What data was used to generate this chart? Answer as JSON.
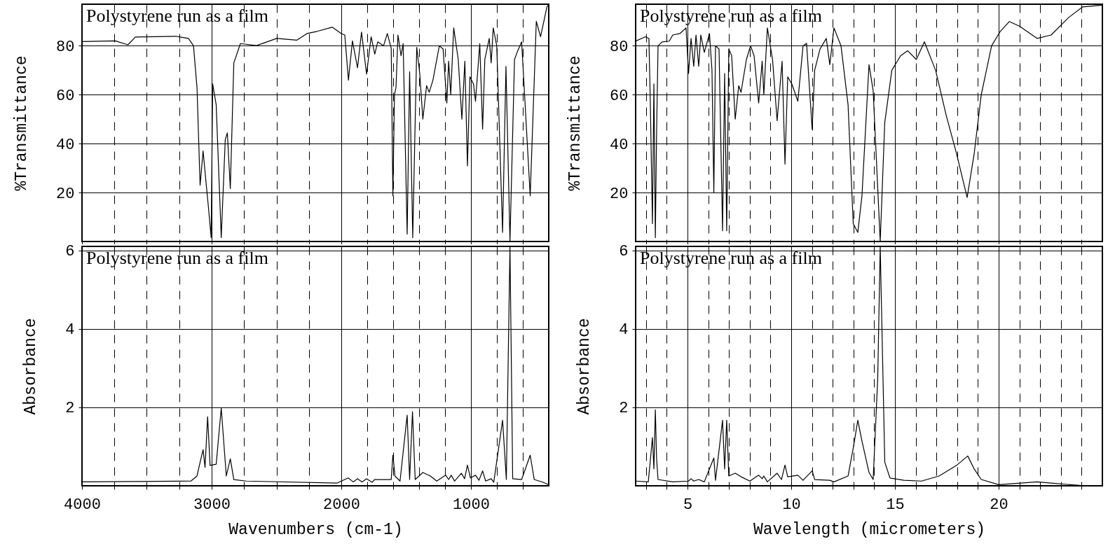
{
  "chart_data": [
    {
      "type": "line",
      "title": "Polystyrene run as a film",
      "ylabel": "%Transmittance",
      "color": "#000000",
      "grid": true,
      "tick_labels": "y",
      "xlim": [
        4000,
        400
      ],
      "ylim": [
        0,
        97
      ],
      "xticks": [
        4000,
        {
          "value": 3750,
          "label": null
        },
        {
          "value": 3500,
          "label": null
        },
        {
          "value": 3250,
          "label": null
        },
        3000,
        {
          "value": 2750,
          "label": null
        },
        {
          "value": 2500,
          "label": null
        },
        {
          "value": 2250,
          "label": null
        },
        2000,
        {
          "value": 1800,
          "label": null
        },
        {
          "value": 1600,
          "label": null
        },
        {
          "value": 1400,
          "label": null
        },
        {
          "value": 1200,
          "label": null
        },
        1000,
        {
          "value": 800,
          "label": null
        },
        {
          "value": 600,
          "label": null
        }
      ],
      "yticks": [
        20,
        40,
        60,
        80
      ],
      "x": [
        4000,
        3743,
        3646,
        3588,
        3276,
        3179,
        3140,
        3113,
        3089,
        3066,
        3043,
        3023,
        3004,
        2992,
        2965,
        2926,
        2895,
        2879,
        2856,
        2829,
        2778,
        2654,
        2498,
        2342,
        2265,
        2187,
        2070,
        2000,
        1973,
        1945,
        1914,
        1875,
        1844,
        1805,
        1770,
        1742,
        1719,
        1674,
        1645,
        1615,
        1602,
        1590,
        1578,
        1563,
        1539,
        1523,
        1492,
        1473,
        1449,
        1418,
        1395,
        1371,
        1342,
        1322,
        1293,
        1244,
        1215,
        1186,
        1172,
        1156,
        1133,
        1098,
        1070,
        1047,
        1027,
        1008,
        980,
        965,
        932,
        910,
        893,
        859,
        844,
        828,
        801,
        756,
        730,
        699,
        664,
        639,
        609,
        543,
        496,
        463,
        414,
        404
      ],
      "values": [
        81.7,
        82,
        80.4,
        83.6,
        83.9,
        83,
        80,
        63,
        23,
        37,
        24,
        13,
        1.6,
        64.4,
        55.9,
        1.6,
        41.6,
        44.4,
        21.6,
        73,
        80.9,
        80.1,
        83,
        82.3,
        85,
        85.9,
        87.6,
        85,
        84.4,
        66,
        82,
        71,
        85.6,
        68.4,
        83.7,
        76.6,
        81.6,
        80,
        85,
        79,
        18.7,
        60,
        63,
        84.4,
        75.9,
        80.9,
        3,
        69.4,
        1.6,
        79.4,
        68.7,
        50,
        63.7,
        61,
        66,
        80,
        78.7,
        56.6,
        73.7,
        60,
        87.3,
        74.4,
        50,
        73.7,
        30.9,
        67.3,
        64.4,
        57.3,
        80.9,
        45.9,
        74.4,
        83,
        73,
        87.3,
        80,
        3.7,
        71.6,
        0.1,
        74.4,
        78,
        81.6,
        18.7,
        90,
        83.7,
        95.9,
        96.6
      ]
    },
    {
      "type": "line",
      "title": "Polystyrene run as a film",
      "ylabel": "%Transmittance",
      "color": "#000000",
      "grid": true,
      "tick_labels": "y",
      "xlim": [
        2.5,
        25
      ],
      "ylim": [
        0,
        97
      ],
      "xticks": [
        {
          "value": 3,
          "label": null
        },
        {
          "value": 4,
          "label": null
        },
        5,
        {
          "value": 6,
          "label": null
        },
        {
          "value": 7,
          "label": null
        },
        {
          "value": 8,
          "label": null
        },
        {
          "value": 9,
          "label": null
        },
        10,
        {
          "value": 11,
          "label": null
        },
        {
          "value": 12,
          "label": null
        },
        {
          "value": 13,
          "label": null
        },
        {
          "value": 14,
          "label": null
        },
        15,
        {
          "value": 16,
          "label": null
        },
        {
          "value": 17,
          "label": null
        },
        {
          "value": 18,
          "label": null
        },
        {
          "value": 19,
          "label": null
        },
        20,
        {
          "value": 21,
          "label": null
        },
        {
          "value": 22,
          "label": null
        },
        {
          "value": 23,
          "label": null
        },
        {
          "value": 24,
          "label": null
        }
      ],
      "yticks": [
        20,
        40,
        60,
        80
      ],
      "x": [
        2.5,
        2.97,
        3.14,
        3.21,
        3.31,
        3.38,
        3.45,
        3.51,
        3.58,
        3.78,
        4.12,
        4.29,
        4.63,
        4.93,
        5.05,
        5.17,
        5.3,
        5.41,
        5.54,
        5.64,
        5.81,
        6.06,
        6.18,
        6.27,
        6.35,
        6.52,
        6.69,
        6.79,
        6.89,
        6.99,
        7.13,
        7.3,
        7.47,
        7.58,
        7.84,
        8.04,
        8.21,
        8.43,
        8.6,
        8.68,
        8.85,
        9.1,
        9.32,
        9.56,
        9.7,
        9.83,
        10.03,
        10.32,
        10.57,
        10.74,
        11.01,
        11.13,
        11.39,
        11.69,
        11.86,
        12.06,
        12.4,
        12.74,
        12.99,
        13.21,
        13.41,
        13.75,
        13.95,
        14.29,
        14.51,
        14.85,
        15.27,
        15.61,
        16.03,
        16.42,
        16.96,
        17.47,
        17.97,
        18.48,
        18.82,
        19.16,
        19.66,
        20.08,
        20.51,
        21.01,
        21.86,
        22.53,
        23.38,
        24.05,
        24.98
      ],
      "values": [
        81.9,
        83.7,
        83,
        55.9,
        7.3,
        64.4,
        1.6,
        44.4,
        80,
        81.6,
        81.9,
        84.4,
        85,
        87.3,
        68.7,
        83,
        71.6,
        84.4,
        71.6,
        84.4,
        77.3,
        85,
        70,
        20,
        80,
        78.7,
        4.4,
        68.7,
        4.4,
        78.7,
        75.9,
        50,
        63.7,
        61,
        74.4,
        80,
        75.9,
        56.6,
        73.7,
        60,
        87.3,
        74.4,
        49.4,
        73.7,
        31.6,
        67.3,
        64.4,
        57.3,
        80,
        81,
        45.9,
        70,
        78.7,
        83,
        72.3,
        87.3,
        80,
        55.9,
        7.3,
        3.7,
        18.7,
        72.3,
        61.6,
        0.1,
        48.7,
        70,
        75.9,
        78,
        74.4,
        81.6,
        70,
        51.6,
        35.9,
        18,
        35.9,
        60,
        80,
        85.9,
        89.9,
        88,
        83,
        84.4,
        91.6,
        95.9,
        96.6
      ]
    },
    {
      "type": "line",
      "title": "Polystyrene run as a film",
      "xlabel": "Wavenumbers (cm-1)",
      "ylabel": "Absorbance",
      "color": "#000000",
      "grid": true,
      "xlim": [
        4000,
        400
      ],
      "ylim": [
        0,
        6.1
      ],
      "xticks": [
        4000,
        {
          "value": 3750,
          "label": null
        },
        {
          "value": 3500,
          "label": null
        },
        {
          "value": 3250,
          "label": null
        },
        3000,
        {
          "value": 2750,
          "label": null
        },
        {
          "value": 2500,
          "label": null
        },
        {
          "value": 2250,
          "label": null
        },
        2000,
        {
          "value": 1800,
          "label": null
        },
        {
          "value": 1600,
          "label": null
        },
        {
          "value": 1400,
          "label": null
        },
        {
          "value": 1200,
          "label": null
        },
        1000,
        {
          "value": 800,
          "label": null
        },
        {
          "value": 600,
          "label": null
        }
      ],
      "yticks": [
        2,
        4,
        6
      ],
      "x": [
        4000,
        3160,
        3113,
        3089,
        3066,
        3051,
        3031,
        3012,
        2965,
        2926,
        2887,
        2856,
        2829,
        2732,
        2031,
        1947,
        1908,
        1875,
        1840,
        1805,
        1762,
        1742,
        1615,
        1602,
        1586,
        1547,
        1492,
        1473,
        1451,
        1430,
        1371,
        1313,
        1264,
        1195,
        1172,
        1152,
        1127,
        1074,
        1049,
        1027,
        1004,
        965,
        938,
        910,
        887,
        844,
        824,
        756,
        727,
        699,
        678,
        609,
        543,
        512,
        443,
        404
      ],
      "values": [
        0.1,
        0.12,
        0.25,
        0.6,
        0.92,
        0.47,
        1.76,
        0.52,
        0.55,
        1.98,
        0.25,
        0.69,
        0.16,
        0.12,
        0.07,
        0.2,
        0.1,
        0.18,
        0.1,
        0.18,
        0.09,
        0.16,
        0.16,
        0.78,
        0.25,
        0.12,
        1.8,
        0.16,
        1.89,
        0.16,
        0.34,
        0.25,
        0.12,
        0.27,
        0.16,
        0.27,
        0.12,
        0.32,
        0.18,
        0.53,
        0.2,
        0.27,
        0.14,
        0.38,
        0.12,
        0.18,
        0.09,
        1.67,
        0.16,
        6.1,
        0.18,
        0.16,
        0.78,
        0.16,
        0.09,
        0.03
      ]
    },
    {
      "type": "line",
      "title": "Polystyrene run as a film",
      "xlabel": "Wavelength (micrometers)",
      "ylabel": "Absorbance",
      "color": "#000000",
      "grid": true,
      "xlim": [
        2.5,
        25
      ],
      "ylim": [
        0,
        6.1
      ],
      "xticks": [
        {
          "value": 3,
          "label": null
        },
        {
          "value": 4,
          "label": null
        },
        5,
        {
          "value": 6,
          "label": null
        },
        {
          "value": 7,
          "label": null
        },
        {
          "value": 8,
          "label": null
        },
        {
          "value": 9,
          "label": null
        },
        10,
        {
          "value": 11,
          "label": null
        },
        {
          "value": 12,
          "label": null
        },
        {
          "value": 13,
          "label": null
        },
        {
          "value": 14,
          "label": null
        },
        15,
        {
          "value": 16,
          "label": null
        },
        {
          "value": 17,
          "label": null
        },
        {
          "value": 18,
          "label": null
        },
        {
          "value": 19,
          "label": null
        },
        20,
        {
          "value": 21,
          "label": null
        },
        {
          "value": 22,
          "label": null
        },
        {
          "value": 23,
          "label": null
        },
        {
          "value": 24,
          "label": null
        }
      ],
      "yticks": [
        2,
        4,
        6
      ],
      "x": [
        2.5,
        3.11,
        3.31,
        3.38,
        3.45,
        3.51,
        3.58,
        4.29,
        5.05,
        5.17,
        5.3,
        5.54,
        5.81,
        6.27,
        6.35,
        6.69,
        6.79,
        6.89,
        6.99,
        7.3,
        7.58,
        8.01,
        8.43,
        8.6,
        8.68,
        8.85,
        9.32,
        9.53,
        9.7,
        9.83,
        10.32,
        10.57,
        11.01,
        11.13,
        11.86,
        12.06,
        12.74,
        12.99,
        13.21,
        13.41,
        13.75,
        13.95,
        14.17,
        14.29,
        14.51,
        14.76,
        15.44,
        16.28,
        17.13,
        17.97,
        18.51,
        18.82,
        19.16,
        20,
        21.86,
        22.53,
        23.89
      ],
      "values": [
        0.12,
        0.1,
        1.23,
        0.43,
        1.94,
        0.69,
        0.16,
        0.1,
        0.12,
        0.18,
        0.12,
        0.16,
        0.1,
        0.71,
        0.14,
        1.67,
        0.43,
        1.67,
        0.25,
        0.32,
        0.23,
        0.12,
        0.27,
        0.18,
        0.25,
        0.1,
        0.32,
        0.16,
        0.53,
        0.23,
        0.27,
        0.14,
        0.38,
        0.16,
        0.14,
        0.1,
        0.25,
        0.96,
        1.67,
        1.14,
        0.34,
        0.16,
        2.74,
        6.1,
        0.6,
        0.2,
        0.14,
        0.12,
        0.25,
        0.52,
        0.76,
        0.43,
        0.16,
        0.03,
        0.1,
        0.07,
        0.01
      ]
    }
  ]
}
